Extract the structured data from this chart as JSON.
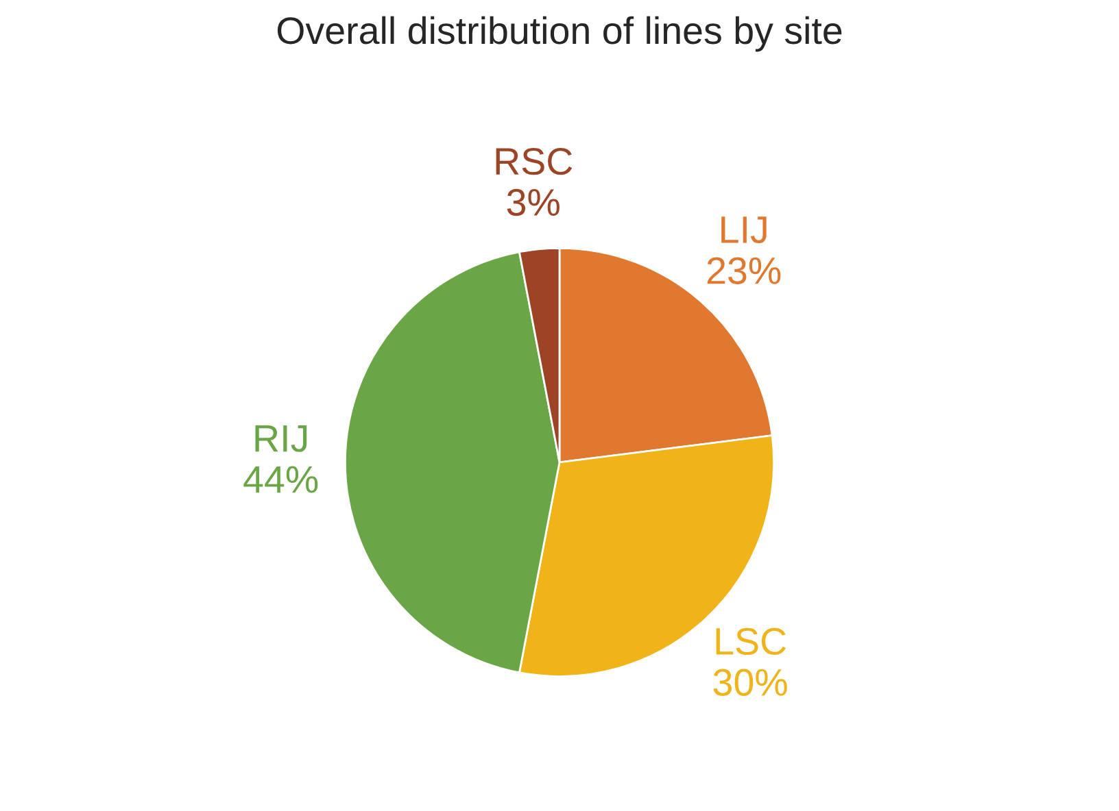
{
  "chart_data": {
    "type": "pie",
    "title": "Overall distribution of lines by site",
    "categories": [
      "LIJ",
      "LSC",
      "RIJ",
      "RSC"
    ],
    "values": [
      23,
      30,
      44,
      3
    ],
    "value_labels": [
      "23%",
      "30%",
      "44%",
      "3%"
    ],
    "colors": [
      "#e07830",
      "#f0b418",
      "#6aa645",
      "#9c4425"
    ]
  }
}
